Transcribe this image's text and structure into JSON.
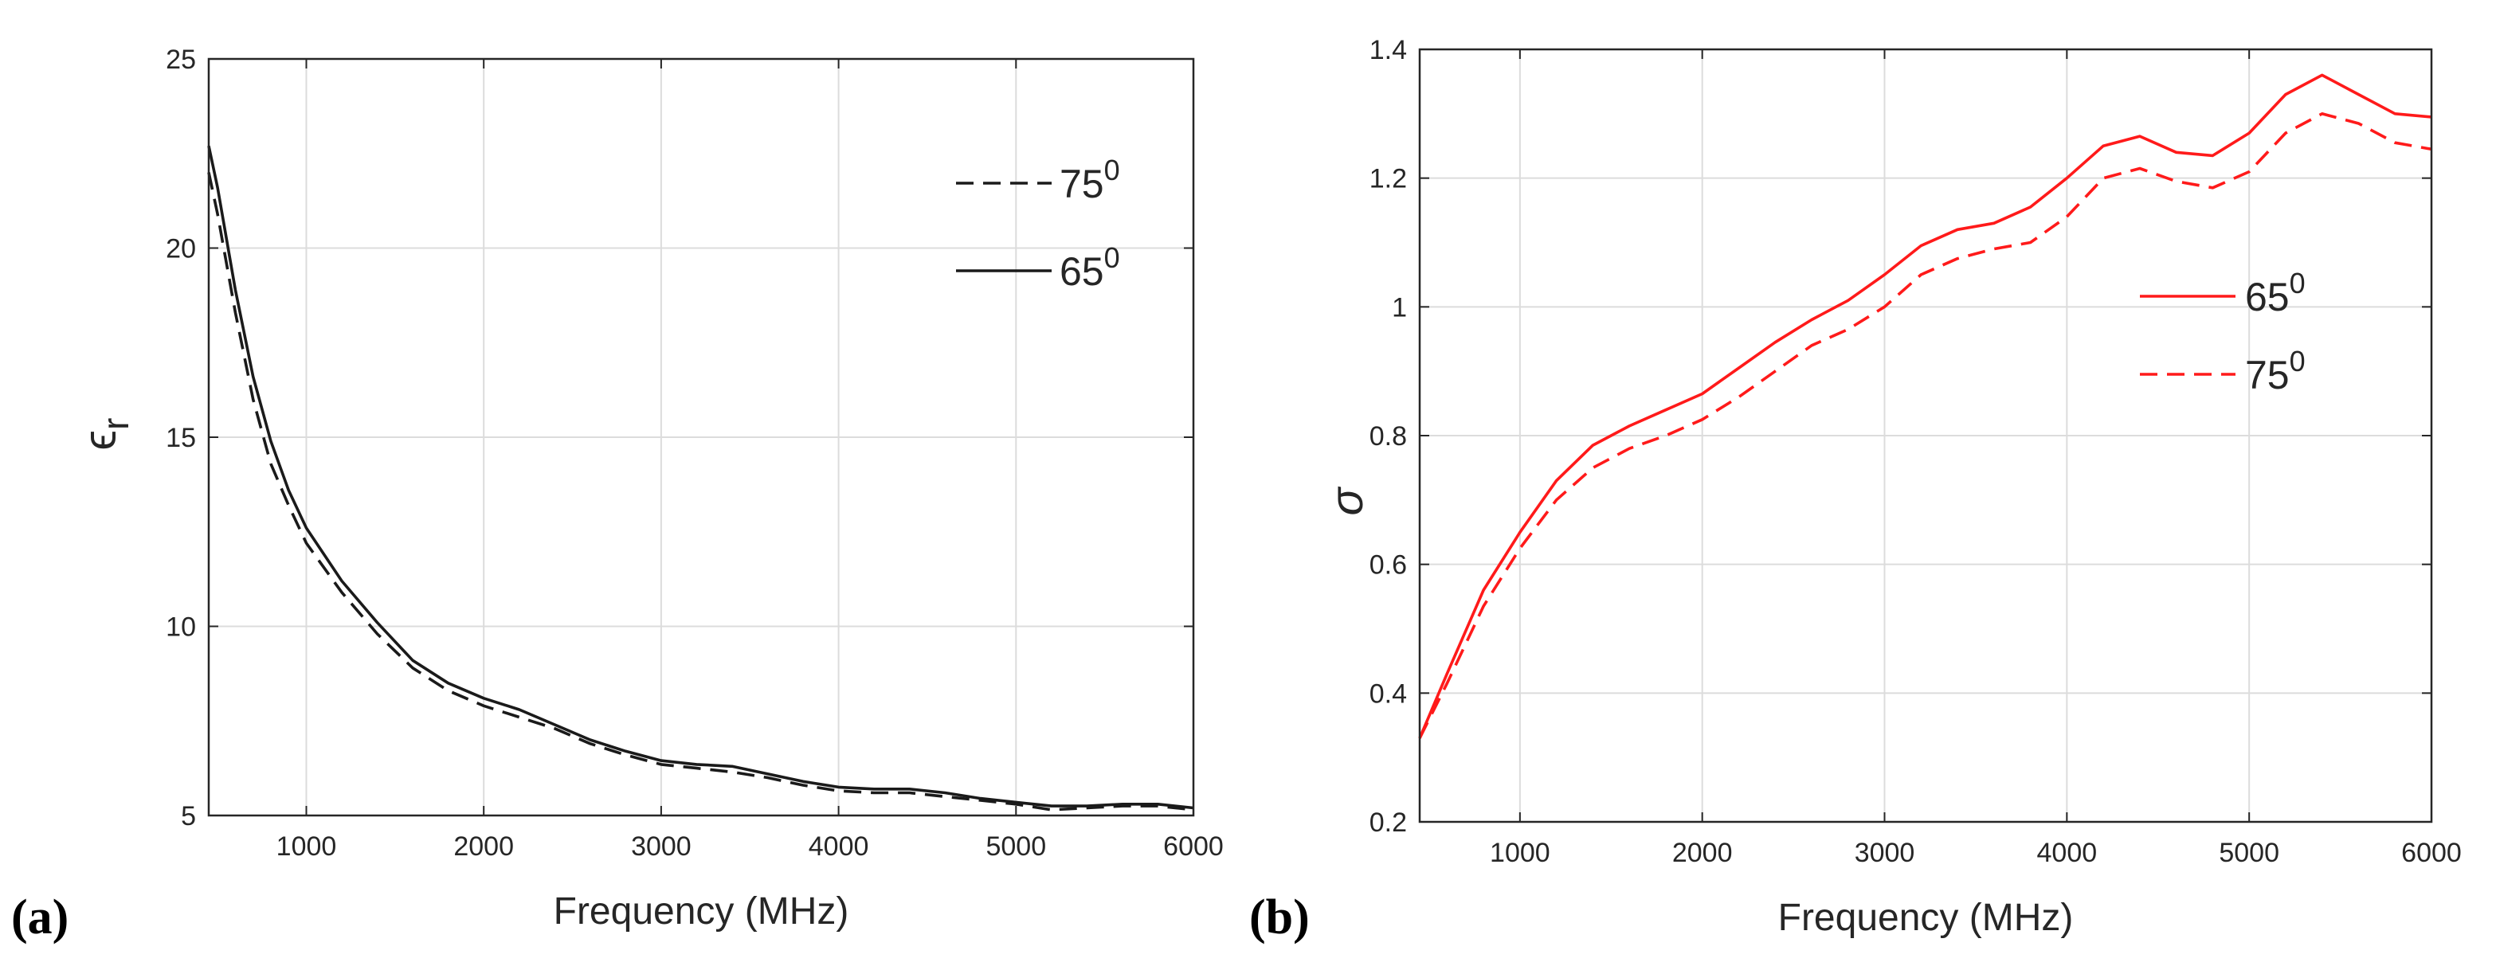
{
  "chart_data": [
    {
      "type": "line",
      "panel_label": "(a)",
      "xlabel": "Frequency (MHz)",
      "ylabel": "εr",
      "ylabel_main": "ϵ",
      "ylabel_sub": "r",
      "xlim": [
        450,
        6000
      ],
      "ylim": [
        5,
        25
      ],
      "x_ticks": [
        1000,
        2000,
        3000,
        4000,
        5000,
        6000
      ],
      "y_ticks": [
        5,
        10,
        15,
        20,
        25
      ],
      "grid": true,
      "legend_position": "top-right",
      "colors": {
        "line": "#1a1a1a",
        "axis": "#262626",
        "grid": "#dcdcdc"
      },
      "series": [
        {
          "name": "75⁰",
          "label_base": "75",
          "label_sup": "0",
          "style": "dashed",
          "x": [
            450,
            500,
            600,
            700,
            800,
            900,
            1000,
            1200,
            1400,
            1600,
            1800,
            2000,
            2200,
            2400,
            2600,
            2800,
            3000,
            3200,
            3400,
            3600,
            3800,
            4000,
            4200,
            4400,
            4600,
            4800,
            5000,
            5200,
            5400,
            5600,
            5800,
            6000
          ],
          "y": [
            22.0,
            20.9,
            18.3,
            16.0,
            14.3,
            13.2,
            12.2,
            10.9,
            9.8,
            8.9,
            8.3,
            7.9,
            7.6,
            7.3,
            6.9,
            6.6,
            6.35,
            6.25,
            6.15,
            6.0,
            5.8,
            5.65,
            5.6,
            5.6,
            5.5,
            5.4,
            5.3,
            5.15,
            5.2,
            5.25,
            5.25,
            5.15
          ]
        },
        {
          "name": "65⁰",
          "label_base": "65",
          "label_sup": "0",
          "style": "solid",
          "x": [
            450,
            500,
            600,
            700,
            800,
            900,
            1000,
            1200,
            1400,
            1600,
            1800,
            2000,
            2200,
            2400,
            2600,
            2800,
            3000,
            3200,
            3400,
            3600,
            3800,
            4000,
            4200,
            4400,
            4600,
            4800,
            5000,
            5200,
            5400,
            5600,
            5800,
            6000
          ],
          "y": [
            22.7,
            21.6,
            18.9,
            16.6,
            14.9,
            13.6,
            12.6,
            11.2,
            10.1,
            9.1,
            8.5,
            8.1,
            7.8,
            7.4,
            7.0,
            6.7,
            6.45,
            6.35,
            6.3,
            6.1,
            5.9,
            5.75,
            5.7,
            5.7,
            5.6,
            5.45,
            5.35,
            5.25,
            5.25,
            5.3,
            5.3,
            5.2
          ]
        }
      ]
    },
    {
      "type": "line",
      "panel_label": "(b)",
      "xlabel": "Frequency (MHz)",
      "ylabel": "σ",
      "xlim": [
        450,
        6000
      ],
      "ylim": [
        0.2,
        1.4
      ],
      "x_ticks": [
        1000,
        2000,
        3000,
        4000,
        5000,
        6000
      ],
      "y_ticks": [
        0.2,
        0.4,
        0.6,
        0.8,
        1,
        1.2,
        1.4
      ],
      "y_tick_labels": [
        "0.2",
        "0.4",
        "0.6",
        "0.8",
        "1",
        "1.2",
        "1.4"
      ],
      "grid": true,
      "legend_position": "center-right",
      "colors": {
        "line": "#ff1a1a",
        "axis": "#262626",
        "grid": "#dcdcdc"
      },
      "series": [
        {
          "name": "65⁰",
          "label_base": "65",
          "label_sup": "0",
          "style": "solid",
          "x": [
            450,
            600,
            800,
            1000,
            1200,
            1400,
            1600,
            1800,
            2000,
            2200,
            2400,
            2600,
            2800,
            3000,
            3200,
            3400,
            3600,
            3800,
            4000,
            4200,
            4400,
            4600,
            4800,
            5000,
            5200,
            5400,
            5600,
            5800,
            6000
          ],
          "y": [
            0.33,
            0.43,
            0.56,
            0.65,
            0.73,
            0.785,
            0.815,
            0.84,
            0.865,
            0.905,
            0.945,
            0.98,
            1.01,
            1.05,
            1.095,
            1.12,
            1.13,
            1.155,
            1.2,
            1.25,
            1.265,
            1.24,
            1.235,
            1.27,
            1.33,
            1.36,
            1.33,
            1.3,
            1.295
          ]
        },
        {
          "name": "75⁰",
          "label_base": "75",
          "label_sup": "0",
          "style": "dashed",
          "x": [
            450,
            600,
            800,
            1000,
            1200,
            1400,
            1600,
            1800,
            2000,
            2200,
            2400,
            2600,
            2800,
            3000,
            3200,
            3400,
            3600,
            3800,
            4000,
            4200,
            4400,
            4600,
            4800,
            5000,
            5200,
            5400,
            5600,
            5800,
            6000
          ],
          "y": [
            0.33,
            0.415,
            0.535,
            0.625,
            0.7,
            0.75,
            0.78,
            0.8,
            0.825,
            0.86,
            0.9,
            0.94,
            0.965,
            1.0,
            1.05,
            1.075,
            1.09,
            1.1,
            1.14,
            1.2,
            1.215,
            1.195,
            1.185,
            1.21,
            1.27,
            1.3,
            1.285,
            1.255,
            1.245
          ]
        }
      ]
    }
  ]
}
